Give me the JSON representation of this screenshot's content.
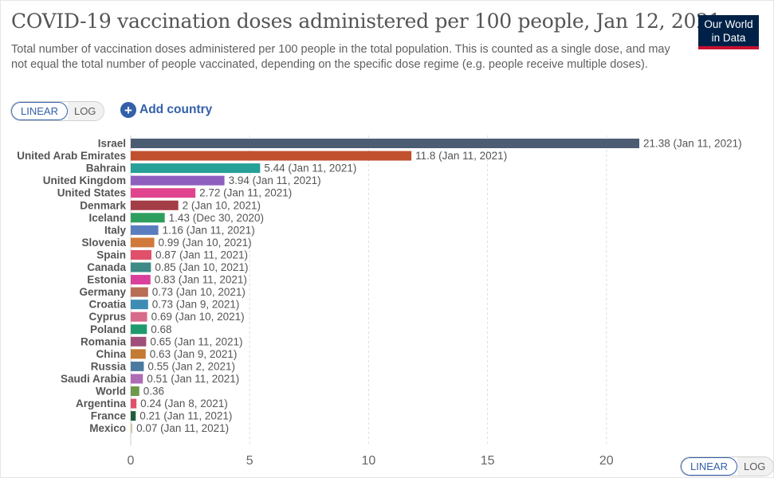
{
  "header": {
    "title": "COVID-19 vaccination doses administered per 100 people, Jan 12, 2021",
    "subtitle": "Total number of vaccination doses administered per 100 people in the total population. This is counted as a single dose, and may not equal the total number of people vaccinated, depending on the specific dose regime (e.g. people receive multiple doses).",
    "logo_line1": "Our World",
    "logo_line2": "in Data"
  },
  "controls": {
    "linear_label": "LINEAR",
    "log_label": "LOG",
    "add_country_label": "Add country",
    "active_scale": "linear"
  },
  "colors": {
    "accent": "#3360a9",
    "logo_bg": "#002147",
    "logo_stripe": "#c8102e"
  },
  "chart_data": {
    "type": "bar",
    "orientation": "horizontal",
    "xlim": [
      0,
      21.38
    ],
    "x_ticks": [
      0,
      5,
      10,
      15,
      20
    ],
    "grid": "vertical dashed",
    "categories": [
      "Israel",
      "United Arab Emirates",
      "Bahrain",
      "United Kingdom",
      "United States",
      "Denmark",
      "Iceland",
      "Italy",
      "Slovenia",
      "Spain",
      "Canada",
      "Estonia",
      "Germany",
      "Croatia",
      "Cyprus",
      "Poland",
      "Romania",
      "China",
      "Russia",
      "Saudi Arabia",
      "World",
      "Argentina",
      "France",
      "Mexico"
    ],
    "values": [
      21.38,
      11.8,
      5.44,
      3.94,
      2.72,
      2,
      1.43,
      1.16,
      0.99,
      0.87,
      0.85,
      0.83,
      0.73,
      0.73,
      0.69,
      0.68,
      0.65,
      0.63,
      0.55,
      0.51,
      0.36,
      0.24,
      0.21,
      0.07
    ],
    "labels": [
      "21.38 (Jan 11, 2021)",
      "11.8 (Jan 11, 2021)",
      "5.44 (Jan 11, 2021)",
      "3.94 (Jan 11, 2021)",
      "2.72 (Jan 11, 2021)",
      "2 (Jan 10, 2021)",
      "1.43 (Dec 30, 2020)",
      "1.16 (Jan 11, 2021)",
      "0.99 (Jan 10, 2021)",
      "0.87 (Jan 11, 2021)",
      "0.85 (Jan 10, 2021)",
      "0.83 (Jan 11, 2021)",
      "0.73 (Jan 10, 2021)",
      "0.73 (Jan 9, 2021)",
      "0.69 (Jan 10, 2021)",
      "0.68",
      "0.65 (Jan 11, 2021)",
      "0.63 (Jan 9, 2021)",
      "0.55 (Jan 2, 2021)",
      "0.51 (Jan 11, 2021)",
      "0.36",
      "0.24 (Jan 8, 2021)",
      "0.21 (Jan 11, 2021)",
      "0.07 (Jan 11, 2021)"
    ],
    "bar_colors": [
      "#4c5c73",
      "#c1502e",
      "#27a097",
      "#8e5fbf",
      "#e0448e",
      "#a33d46",
      "#2e9e5e",
      "#5a7dbf",
      "#d0793a",
      "#e0506a",
      "#3d8a86",
      "#d93f9b",
      "#b86d55",
      "#3d8cb4",
      "#d86a8a",
      "#1f9a6e",
      "#9f4f79",
      "#c37a33",
      "#4b7aa0",
      "#b06bb5",
      "#6c9a4a",
      "#e0506a",
      "#1f5e3a",
      "#d8c7a0"
    ]
  }
}
